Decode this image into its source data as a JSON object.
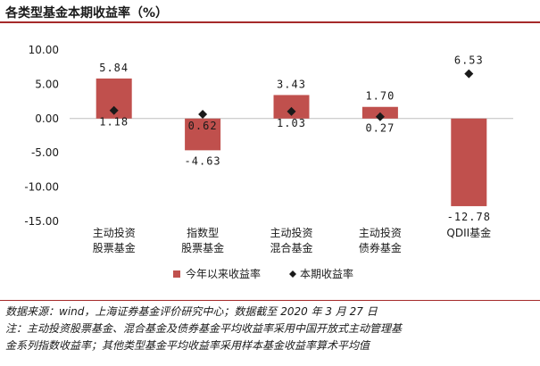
{
  "title": "各类型基金本期收益率（%）",
  "chart_data": {
    "type": "bar",
    "categories": [
      [
        "主动投资",
        "股票基金"
      ],
      [
        "指数型",
        "股票基金"
      ],
      [
        "主动投资",
        "混合基金"
      ],
      [
        "主动投资",
        "债券基金"
      ],
      [
        "QDII基金"
      ]
    ],
    "series": [
      {
        "name": "今年以来收益率",
        "kind": "bar",
        "color": "#c0504d",
        "values": [
          5.84,
          -4.63,
          3.43,
          1.7,
          -12.78
        ]
      },
      {
        "name": "本期收益率",
        "kind": "marker",
        "color": "#1a1a1a",
        "values": [
          1.18,
          0.62,
          1.03,
          0.27,
          6.53
        ]
      }
    ],
    "ylim": [
      -15,
      10
    ],
    "yticks": [
      -15,
      -10,
      -5,
      0,
      5,
      10
    ],
    "ytick_labels": [
      "-15.00",
      "-10.00",
      "-5.00",
      "0.00",
      "5.00",
      "10.00"
    ],
    "bar_labels": [
      "5.84",
      "-4.63",
      "3.43",
      "1.70",
      "-12.78"
    ],
    "marker_labels": [
      "1.18",
      "0.62",
      "1.03",
      "0.27",
      "6.53"
    ],
    "grid": false,
    "legend_position": "bottom"
  },
  "notes": [
    "数据来源：wind，上海证券基金评价研究中心；数据截至 2020 年 3 月 27 日",
    "注：主动投资股票基金、混合基金及债券基金平均收益率采用中国开放式主动管理基",
    "金系列指数收益率；其他类型基金平均收益率采用样本基金收益率算术平均值"
  ]
}
